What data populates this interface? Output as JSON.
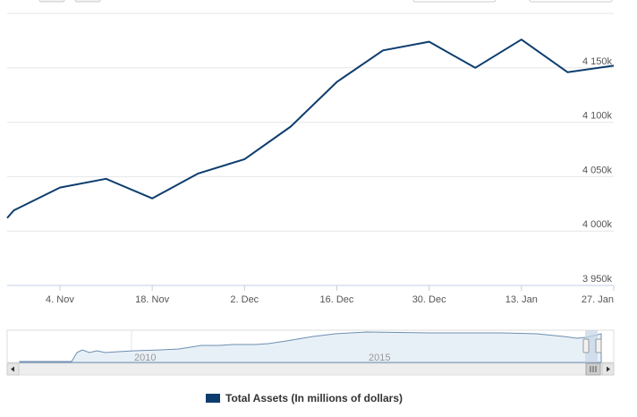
{
  "chart_data": {
    "type": "line",
    "series": [
      {
        "name": "Total Assets (In millions of dollars)",
        "color": "#0d3d6e",
        "x": [
          "2015-10-27",
          "2015-10-28",
          "2015-11-04",
          "2015-11-11",
          "2015-11-18",
          "2015-11-25",
          "2015-12-02",
          "2015-12-09",
          "2015-12-16",
          "2015-12-23",
          "2015-12-30",
          "2016-01-06",
          "2016-01-13",
          "2016-01-20",
          "2016-01-27"
        ],
        "values": [
          4012000,
          4019000,
          4040000,
          4048000,
          4030000,
          4053000,
          4066000,
          4096000,
          4137000,
          4166000,
          4174000,
          4150000,
          4176000,
          4146000,
          4152000
        ]
      }
    ],
    "x_ticks": [
      "4. Nov",
      "18. Nov",
      "2. Dec",
      "16. Dec",
      "30. Dec",
      "13. Jan",
      "27. Jan"
    ],
    "y_ticks": [
      "3 950k",
      "4 000k",
      "4 050k",
      "4 100k",
      "4 150k"
    ],
    "y_tick_values": [
      3950000,
      4000000,
      4050000,
      4100000,
      4150000
    ],
    "ylim": [
      3950000,
      4200000
    ],
    "xlim": [
      "2015-10-27",
      "2016-01-27"
    ],
    "grid": "horizontal",
    "legend_position": "bottom",
    "navigator": {
      "labels": [
        "2010",
        "2015"
      ]
    }
  }
}
